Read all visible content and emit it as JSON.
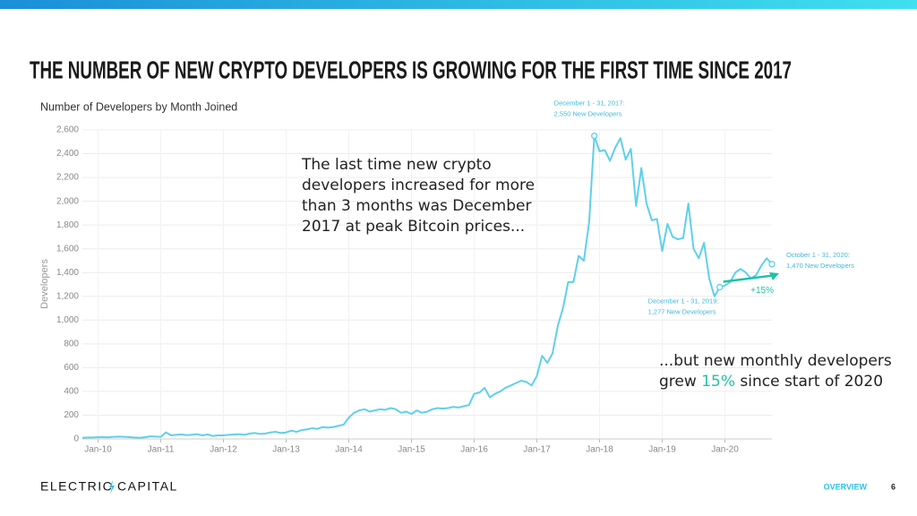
{
  "header": {
    "title": "THE NUMBER OF NEW CRYPTO DEVELOPERS IS GROWING FOR THE FIRST TIME SINCE 2017"
  },
  "chart_data": {
    "type": "line",
    "title": "Number of Developers by Month Joined",
    "y_label": "Developers",
    "x": [
      0,
      1,
      2,
      3,
      4,
      5,
      6,
      7,
      8,
      9,
      10,
      11,
      12,
      13,
      14,
      15,
      16,
      17,
      18,
      19,
      20,
      21,
      22,
      23,
      24,
      25,
      26,
      27,
      28,
      29,
      30,
      31,
      32,
      33,
      34,
      35,
      36,
      37,
      38,
      39,
      40,
      41,
      42,
      43,
      44,
      45,
      46,
      47,
      48,
      49,
      50,
      51,
      52,
      53,
      54,
      55,
      56,
      57,
      58,
      59,
      60,
      61,
      62,
      63,
      64,
      65,
      66,
      67,
      68,
      69,
      70,
      71,
      72,
      73,
      74,
      75,
      76,
      77,
      78,
      79,
      80,
      81,
      82,
      83,
      84,
      85,
      86,
      87,
      88,
      89,
      90,
      91,
      92,
      93,
      94,
      95,
      96,
      97,
      98,
      99,
      100,
      101,
      102,
      103,
      104,
      105,
      106,
      107,
      108,
      109,
      110,
      111,
      112,
      113,
      114,
      115,
      116,
      117,
      118,
      119,
      120,
      121,
      122,
      123,
      124,
      125,
      126,
      127,
      128,
      129,
      130,
      131,
      132
    ],
    "series": [
      {
        "name": "Developers",
        "color": "#5fd0ea",
        "values": [
          10,
          12,
          12,
          15,
          15,
          14,
          18,
          20,
          18,
          15,
          12,
          10,
          14,
          22,
          20,
          18,
          55,
          30,
          35,
          38,
          32,
          36,
          40,
          30,
          38,
          25,
          30,
          30,
          35,
          38,
          40,
          35,
          45,
          50,
          42,
          45,
          55,
          60,
          50,
          55,
          70,
          60,
          75,
          80,
          90,
          85,
          100,
          95,
          100,
          110,
          120,
          180,
          220,
          240,
          250,
          230,
          240,
          250,
          245,
          260,
          250,
          220,
          230,
          210,
          240,
          220,
          230,
          250,
          260,
          255,
          260,
          270,
          265,
          275,
          285,
          380,
          390,
          430,
          350,
          380,
          400,
          430,
          450,
          470,
          490,
          480,
          450,
          530,
          700,
          640,
          720,
          950,
          1100,
          1320,
          1320,
          1540,
          1500,
          1820,
          2550,
          2420,
          2430,
          2340,
          2450,
          2530,
          2350,
          2440,
          1960,
          2280,
          1980,
          1840,
          1850,
          1580,
          1810,
          1700,
          1680,
          1690,
          1980,
          1600,
          1520,
          1650,
          1350,
          1200,
          1277,
          1290,
          1320,
          1400,
          1430,
          1400,
          1350,
          1380,
          1460,
          1520,
          1470
        ]
      }
    ],
    "xlim": [
      0,
      132
    ],
    "xticks": [
      {
        "value": 3,
        "label": "Jan-10"
      },
      {
        "value": 15,
        "label": "Jan-11"
      },
      {
        "value": 27,
        "label": "Jan-12"
      },
      {
        "value": 39,
        "label": "Jan-13"
      },
      {
        "value": 51,
        "label": "Jan-14"
      },
      {
        "value": 63,
        "label": "Jan-15"
      },
      {
        "value": 75,
        "label": "Jan-16"
      },
      {
        "value": 87,
        "label": "Jan-17"
      },
      {
        "value": 99,
        "label": "Jan-18"
      },
      {
        "value": 111,
        "label": "Jan-19"
      },
      {
        "value": 123,
        "label": "Jan-20"
      }
    ],
    "ylim": [
      0,
      2600
    ],
    "yticks": [
      0,
      200,
      400,
      600,
      800,
      {
        "value": 1000,
        "label": "1,000"
      },
      {
        "value": 1200,
        "label": "1,200"
      },
      {
        "value": 1400,
        "label": "1,400"
      },
      {
        "value": 1600,
        "label": "1,600"
      },
      {
        "value": 1800,
        "label": "1,800"
      },
      {
        "value": 2000,
        "label": "2,000"
      },
      {
        "value": 2200,
        "label": "2,200"
      },
      {
        "value": 2400,
        "label": "2,400"
      },
      {
        "value": 2600,
        "label": "2,600"
      }
    ],
    "grid": true,
    "annotations": [
      {
        "x": 98,
        "y": 2550,
        "lines": [
          "December 1 - 31, 2017:",
          "2,550 New Developers"
        ]
      },
      {
        "x": 122,
        "y": 1277,
        "lines": [
          "December 1 - 31, 2019:",
          "1,277 New Developers"
        ]
      },
      {
        "x": 132,
        "y": 1470,
        "lines": [
          "October 1 - 31, 2020:",
          "1,470 New Developers"
        ]
      }
    ],
    "change_label": "+15%",
    "change_color": "#1fc1a6"
  },
  "callouts": [
    {
      "lines": [
        "The last time new crypto",
        "developers increased for more",
        "than 3 months was December",
        "2017 at peak Bitcoin prices..."
      ]
    },
    {
      "line1": "...but new monthly developers",
      "line2_start": "grew",
      "highlight": "15%",
      "line2_end": "since start of 2020"
    }
  ],
  "footer": {
    "logo_left": "ELECTRIC",
    "logo_right": "CAPITAL",
    "section": "OVERVIEW",
    "page": "6"
  }
}
